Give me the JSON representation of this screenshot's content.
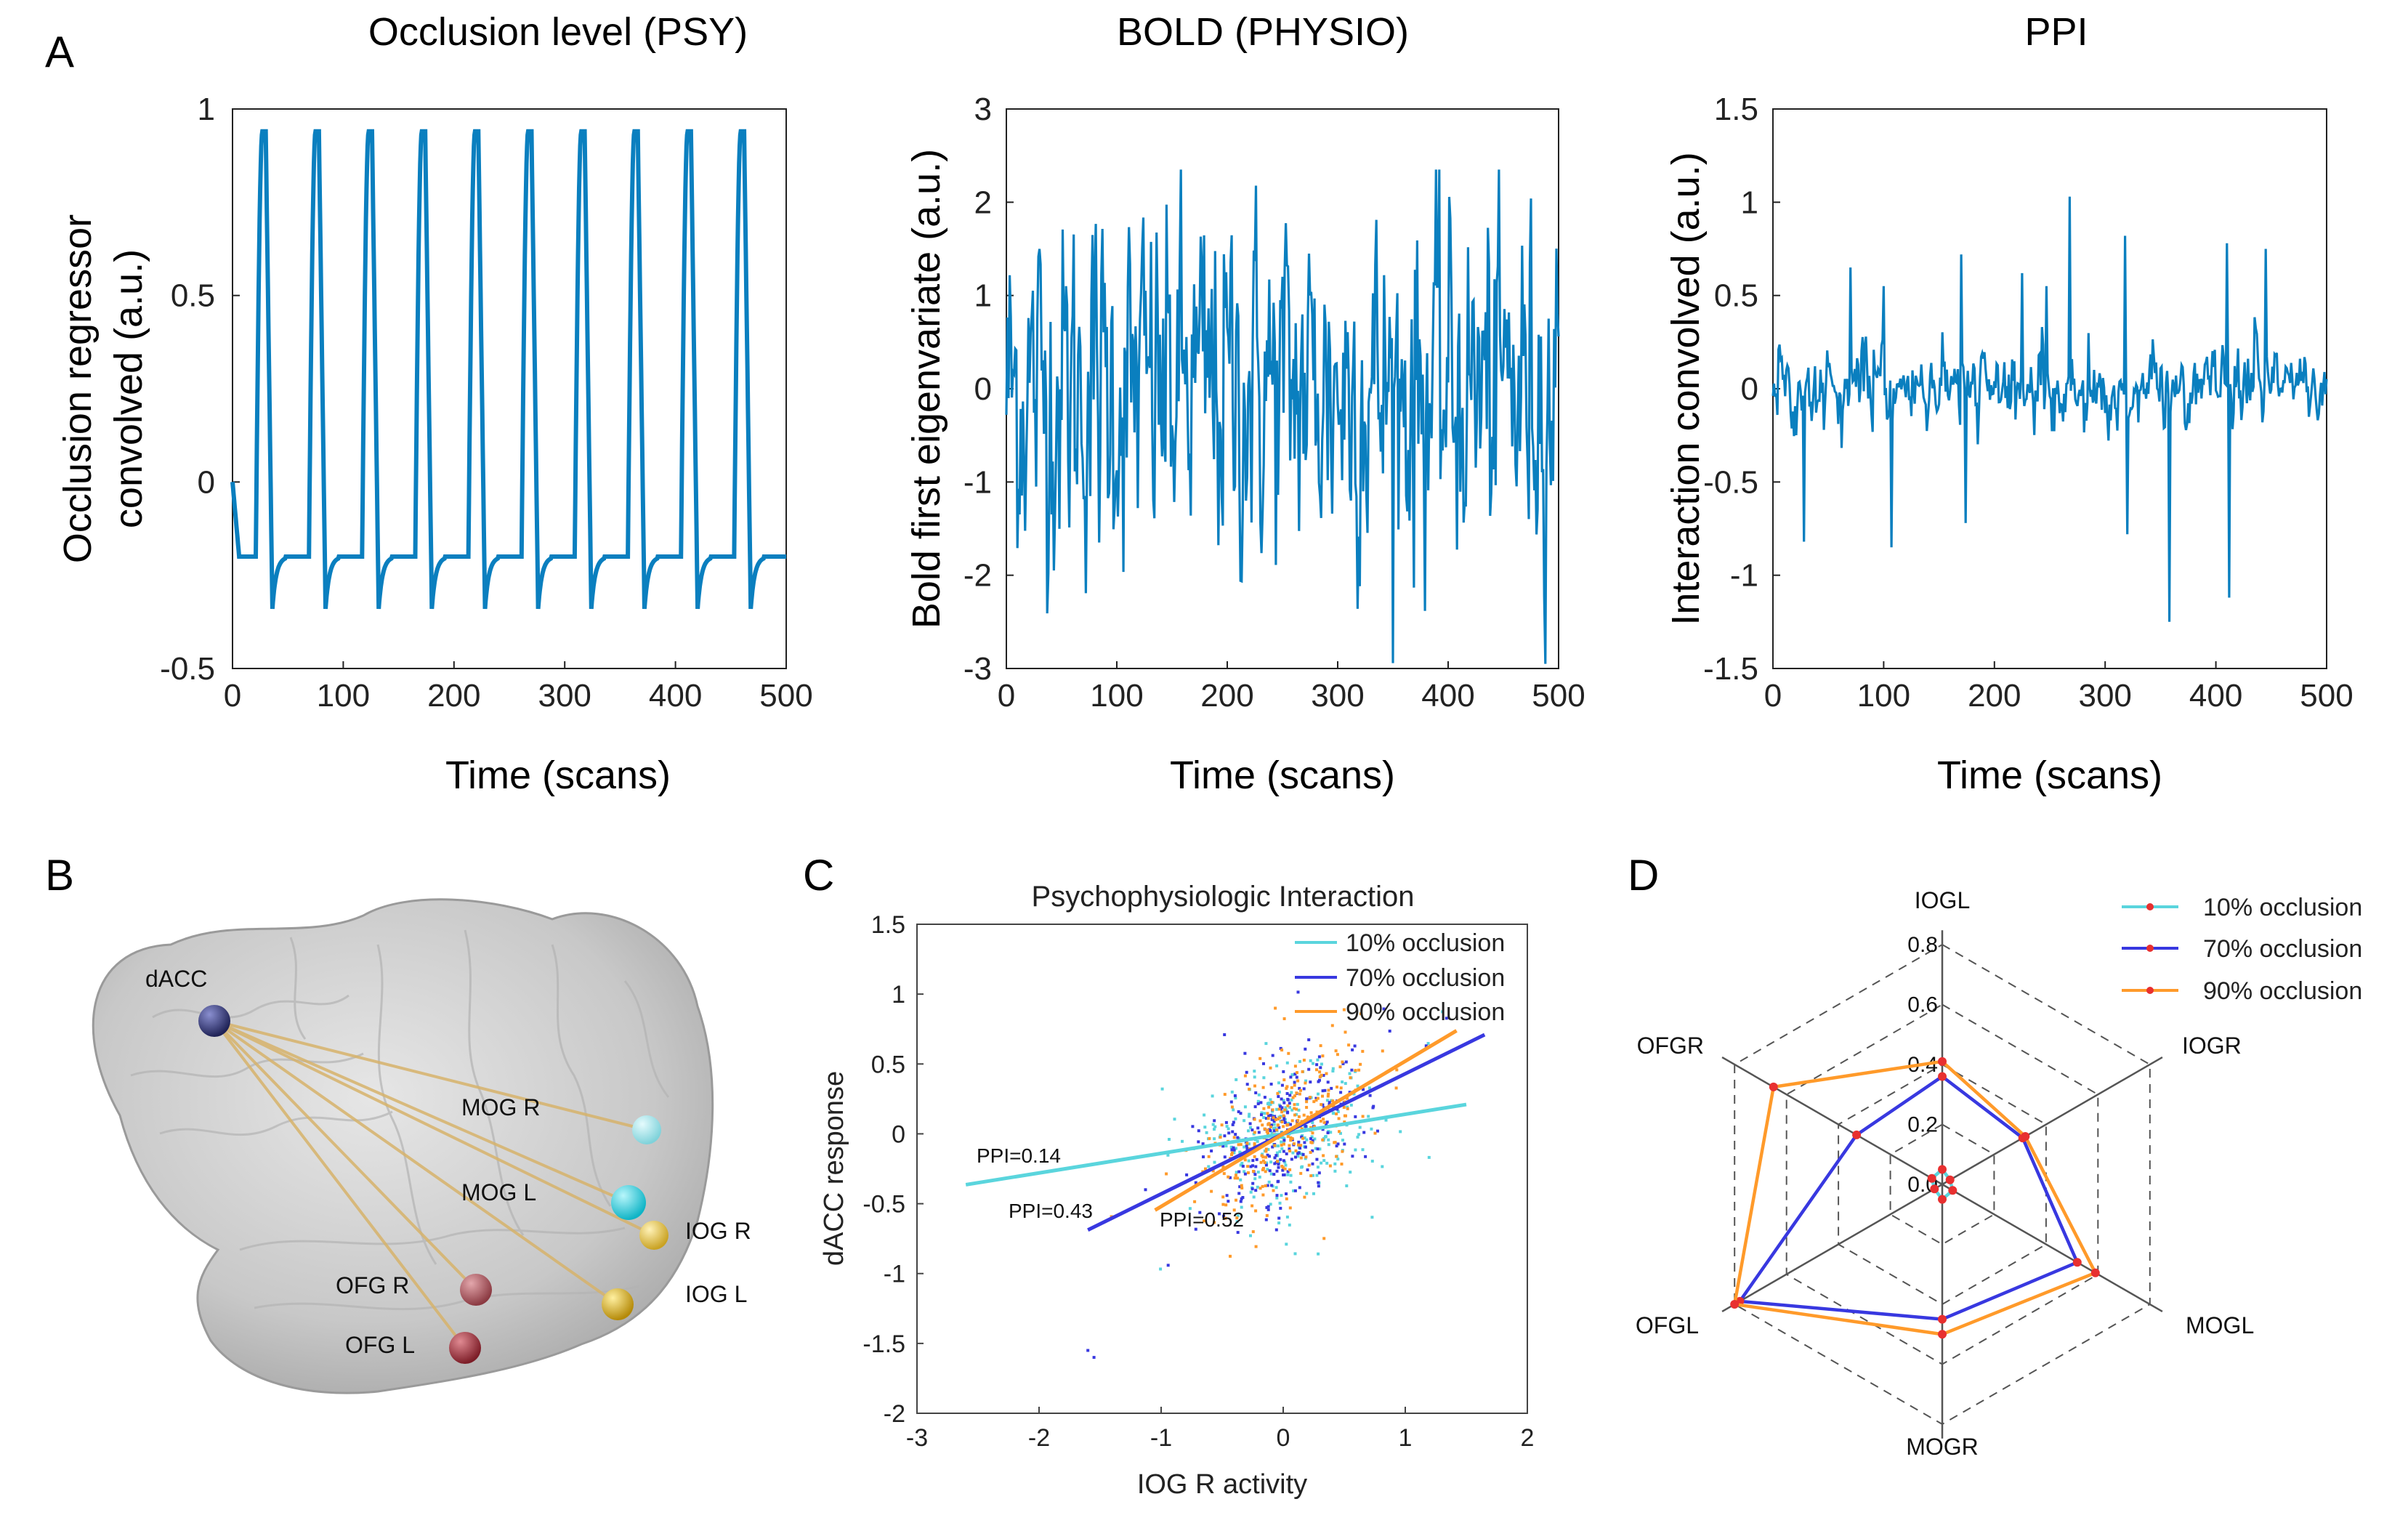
{
  "panels": {
    "a": "A",
    "b": "B",
    "c": "C",
    "d": "D"
  },
  "colors": {
    "trace": "#0a7fbf",
    "ten": "#5ad5dd",
    "seventy": "#3838e0",
    "ninety": "#ff9a2a",
    "radar_marker": "#e83030",
    "brain": "#c9c9c9"
  },
  "chart_data": [
    {
      "id": "psy",
      "type": "line",
      "title": "Occlusion level (PSY)",
      "xlabel": "Time (scans)",
      "ylabel": [
        "Occlusion regressor",
        "convolved (a.u.)"
      ],
      "xlim": [
        0,
        500
      ],
      "ylim": [
        -0.5,
        1
      ],
      "xticks": [
        "0",
        "100",
        "200",
        "300",
        "400",
        "500"
      ],
      "yticks": [
        "-0.5",
        "0",
        "0.5",
        "1"
      ],
      "baseline": -0.2,
      "peak": 0.94,
      "trough": -0.34,
      "period_scans": 48,
      "first_peak_scans": 27
    },
    {
      "id": "bold",
      "type": "line",
      "title": "BOLD  (PHYSIO)",
      "xlabel": "Time (scans)",
      "ylabel": [
        "Bold first eigenvariate (a.u.)"
      ],
      "xlim": [
        0,
        500
      ],
      "ylim": [
        -3,
        3
      ],
      "xticks": [
        "0",
        "100",
        "200",
        "300",
        "400",
        "500"
      ],
      "yticks": [
        "-3",
        "-2",
        "-1",
        "0",
        "1",
        "2",
        "3"
      ],
      "noise_amplitude": 0.9,
      "max": 2.35,
      "min": -2.95
    },
    {
      "id": "ppi",
      "type": "line",
      "title": "PPI",
      "xlabel": "Time (scans)",
      "ylabel": [
        "Interaction convolved (a.u.)"
      ],
      "xlim": [
        0,
        500
      ],
      "ylim": [
        -1.5,
        1.5
      ],
      "xticks": [
        "0",
        "100",
        "200",
        "300",
        "400",
        "500"
      ],
      "yticks": [
        "-1.5",
        "-1",
        "-0.5",
        "0",
        "0.5",
        "1",
        "1.5"
      ],
      "spikes": [
        {
          "x": 28,
          "y": -0.82
        },
        {
          "x": 70,
          "y": 0.65
        },
        {
          "x": 100,
          "y": 0.55
        },
        {
          "x": 107,
          "y": -0.85
        },
        {
          "x": 170,
          "y": 0.72
        },
        {
          "x": 174,
          "y": -0.72
        },
        {
          "x": 225,
          "y": 0.62
        },
        {
          "x": 247,
          "y": 0.55
        },
        {
          "x": 268,
          "y": 1.03
        },
        {
          "x": 318,
          "y": 0.82
        },
        {
          "x": 320,
          "y": -0.78
        },
        {
          "x": 358,
          "y": -1.25
        },
        {
          "x": 410,
          "y": 0.78
        },
        {
          "x": 412,
          "y": -1.12
        },
        {
          "x": 445,
          "y": 0.75
        }
      ]
    },
    {
      "id": "scatter",
      "type": "scatter",
      "title": "Psychophysiologic Interaction",
      "xlabel": "IOG R activity",
      "ylabel": "dACC response",
      "xlim": [
        -3,
        2
      ],
      "ylim": [
        -2,
        1.5
      ],
      "xticks": [
        "-3",
        "-2",
        "-1",
        "0",
        "1",
        "2"
      ],
      "yticks": [
        "-2",
        "-1.5",
        "-1",
        "-0.5",
        "0",
        "0.5",
        "1",
        "1.5"
      ],
      "legend": "top-right",
      "series": [
        {
          "name": "10% occlusion",
          "color": "#5ad5dd",
          "slope": 0.14,
          "x_range": [
            -2.6,
            1.5
          ],
          "label": "PPI=0.14"
        },
        {
          "name": "70% occlusion",
          "color": "#3838e0",
          "slope": 0.43,
          "x_range": [
            -1.6,
            1.65
          ],
          "label": "PPI=0.43"
        },
        {
          "name": "90% occlusion",
          "color": "#ff9a2a",
          "slope": 0.52,
          "x_range": [
            -1.05,
            1.42
          ],
          "label": "PPI=0.52"
        }
      ]
    },
    {
      "id": "radar",
      "type": "radar",
      "axes": [
        "IOGL",
        "IOGR",
        "MOGL",
        "MOGR",
        "OFGL",
        "OFGR"
      ],
      "rlim": [
        0,
        0.8
      ],
      "rticks": [
        "0.0",
        "0.2",
        "0.4",
        "0.6",
        "0.8"
      ],
      "legend": "top-right",
      "series": [
        {
          "name": "10% occlusion",
          "color": "#5ad5dd",
          "values": [
            0.05,
            0.03,
            0.04,
            0.05,
            0.03,
            0.04
          ]
        },
        {
          "name": "70% occlusion",
          "color": "#3838e0",
          "values": [
            0.36,
            0.31,
            0.52,
            0.45,
            0.78,
            0.33
          ]
        },
        {
          "name": "90% occlusion",
          "color": "#ff9a2a",
          "values": [
            0.41,
            0.32,
            0.59,
            0.5,
            0.8,
            0.65
          ]
        }
      ]
    }
  ],
  "brain": {
    "nodes": [
      {
        "label": "dACC",
        "color": "#2b2f6e"
      },
      {
        "label": "MOG R",
        "color": "#9ce4ea"
      },
      {
        "label": "MOG L",
        "color": "#22cfe0"
      },
      {
        "label": "IOG R",
        "color": "#e6c64a"
      },
      {
        "label": "IOG L",
        "color": "#e3b818"
      },
      {
        "label": "OFG R",
        "color": "#b05860"
      },
      {
        "label": "OFG L",
        "color": "#a8323c"
      }
    ]
  }
}
